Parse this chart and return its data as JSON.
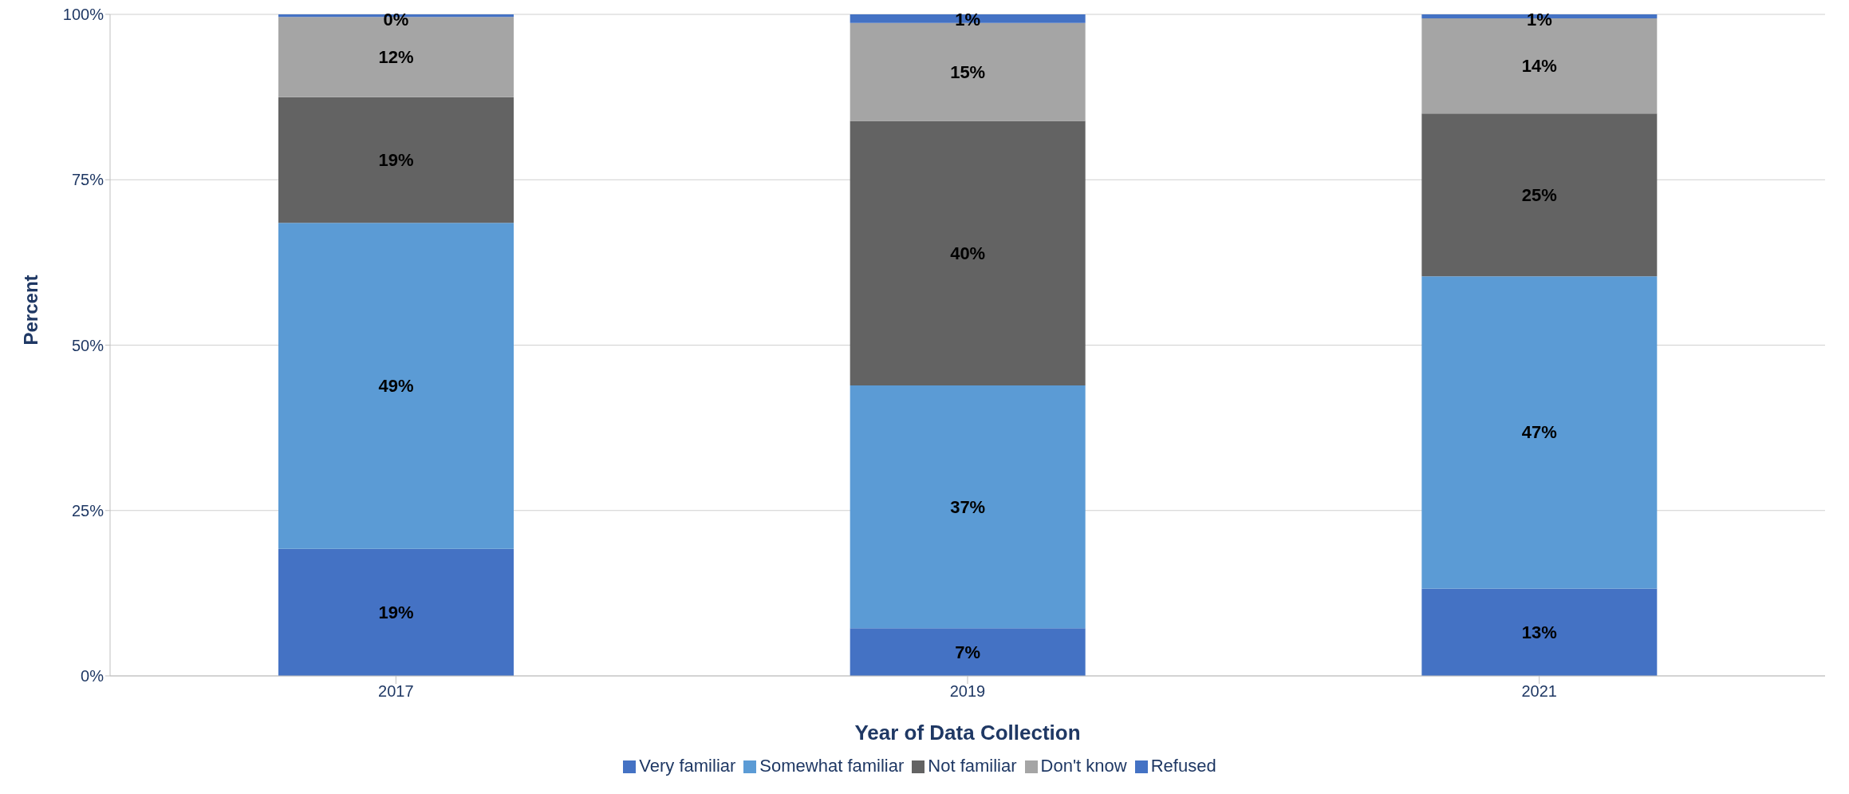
{
  "chart_data": {
    "type": "bar",
    "stacked": true,
    "xlabel": "Year of Data Collection",
    "ylabel": "Percent",
    "categories": [
      "2017",
      "2019",
      "2021"
    ],
    "series": [
      {
        "name": "Very familiar",
        "color": "#4472c4",
        "values": [
          19.2,
          7.2,
          13.2
        ],
        "value_labels": [
          "19%",
          "7%",
          "13%"
        ]
      },
      {
        "name": "Somewhat familiar",
        "color": "#5b9bd5",
        "values": [
          49.3,
          36.7,
          47.2
        ],
        "value_labels": [
          "49%",
          "37%",
          "47%"
        ]
      },
      {
        "name": "Not familiar",
        "color": "#636363",
        "values": [
          19,
          40,
          24.6
        ],
        "value_labels": [
          "19%",
          "40%",
          "25%"
        ]
      },
      {
        "name": "Don't know",
        "color": "#a5a5a5",
        "values": [
          12.1,
          14.8,
          14.4
        ],
        "value_labels": [
          "12%",
          "15%",
          "14%"
        ]
      },
      {
        "name": "Refused",
        "color": "#4472c4",
        "values": [
          0.4,
          1.3,
          0.6
        ],
        "value_labels": [
          "0%",
          "1%",
          "1%"
        ]
      }
    ],
    "ylim": [
      0,
      100
    ],
    "yticks": [
      {
        "value": 0,
        "label": "0%"
      },
      {
        "value": 25,
        "label": "25%"
      },
      {
        "value": 50,
        "label": "50%"
      },
      {
        "value": 75,
        "label": "75%"
      },
      {
        "value": 100,
        "label": "100%"
      }
    ],
    "grid": "y",
    "legend": "bottom"
  }
}
